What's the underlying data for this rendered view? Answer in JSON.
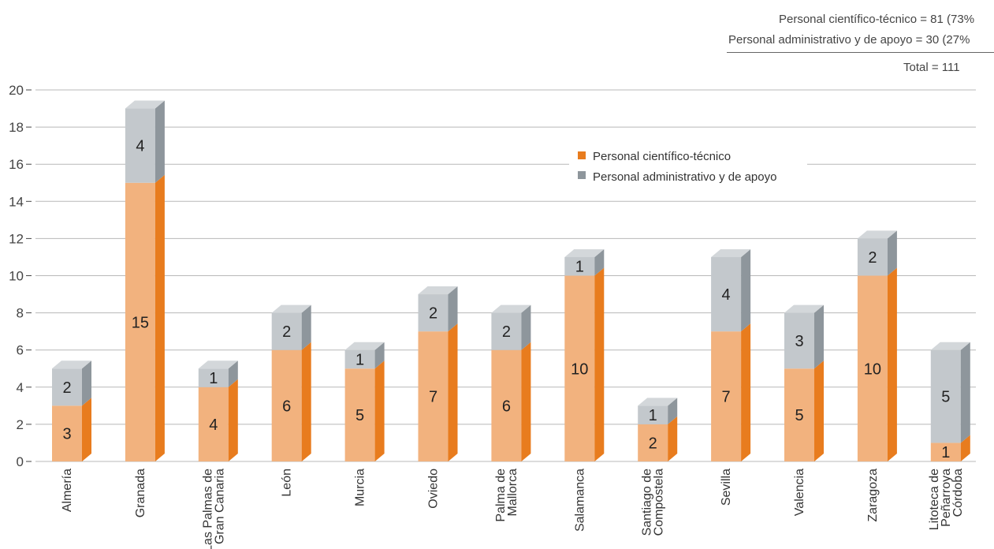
{
  "summary": {
    "line1": "Personal científico-técnico = 81 (73%",
    "line2": "Personal administrativo y de apoyo = 30 (27%",
    "line3": "Total = 111"
  },
  "colors": {
    "tech_front": "#f2b27e",
    "tech_side": "#e87c1e",
    "tech_top": "#f5c49a",
    "admin_front": "#c3c8cc",
    "admin_side": "#8e969c",
    "admin_top": "#d3d7da",
    "grid": "#b8b8b8",
    "legend_tech": "#e87c1e",
    "legend_admin": "#8e969c"
  },
  "chart_data": {
    "type": "bar",
    "stacked": true,
    "categories": [
      [
        "Almería"
      ],
      [
        "Granada"
      ],
      [
        "Las Palmas de",
        "Gran Canaria"
      ],
      [
        "León"
      ],
      [
        "Murcia"
      ],
      [
        "Oviedo"
      ],
      [
        "Palma de",
        "Mallorca"
      ],
      [
        "Salamanca"
      ],
      [
        "Santiago de",
        "Compostela"
      ],
      [
        "Sevilla"
      ],
      [
        "Valencia"
      ],
      [
        "Zaragoza"
      ],
      [
        "Litoteca de",
        "Peñarroya",
        "Córdoba"
      ]
    ],
    "series": [
      {
        "name": "Personal científico-técnico",
        "values": [
          3,
          15,
          4,
          6,
          5,
          7,
          6,
          10,
          2,
          7,
          5,
          10,
          1
        ]
      },
      {
        "name": "Personal administrativo y de apoyo",
        "values": [
          2,
          4,
          1,
          2,
          1,
          2,
          2,
          1,
          1,
          4,
          3,
          2,
          5
        ]
      }
    ],
    "yticks": [
      0,
      2,
      4,
      6,
      8,
      10,
      12,
      14,
      16,
      18,
      20
    ],
    "ylim": [
      0,
      20
    ],
    "grid": true,
    "legend": "top-right"
  }
}
